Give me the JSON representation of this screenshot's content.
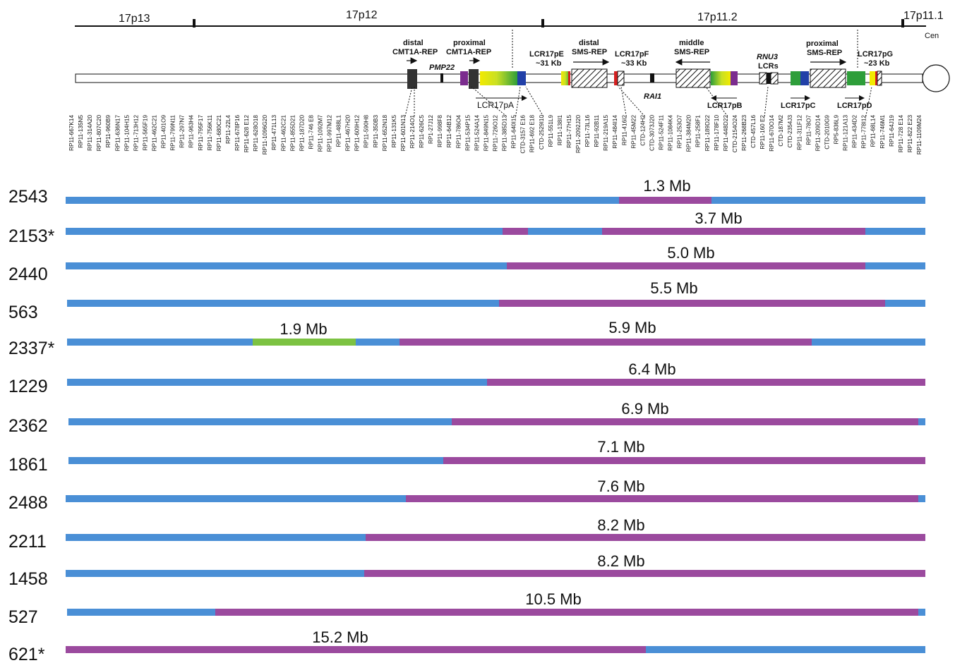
{
  "bands": [
    "17p13",
    "17p12",
    "17p11.2",
    "17p11.1"
  ],
  "centromere_label": "Cen",
  "regions": {
    "distal_cmt1a": [
      "distal",
      "CMT1A-REP"
    ],
    "proximal_cmt1a": [
      "proximal",
      "CMT1A-REP"
    ],
    "lcr17pe": [
      "LCR17pE",
      "~31 Kb"
    ],
    "distal_sms": [
      "distal",
      "SMS-REP"
    ],
    "lcr17pf": [
      "LCR17pF",
      "~33 Kb"
    ],
    "middle_sms": [
      "middle",
      "SMS-REP"
    ],
    "rnu3": [
      "RNU3",
      "LCRs"
    ],
    "proximal_sms": [
      "proximal",
      "SMS-REP"
    ],
    "lcr17pg": [
      "LCR17pG",
      "~23 Kb"
    ]
  },
  "genes": {
    "pmp22": "PMP22",
    "rai1": "RAI1"
  },
  "lcr_labels": {
    "pa": "LCR17pA",
    "pb": "LCR17pB",
    "pc": "LCR17pC",
    "pd": "LCR17pD"
  },
  "clones": [
    "RP11-667K14",
    "RP11-135N5",
    "RP11-314A20",
    "RP11-807C20",
    "RP11-960B9",
    "RP11-636N17",
    "RP11-104H15",
    "RP11-713H12",
    "RP11-565F19",
    "RP11-462C21",
    "RP11-401O9",
    "RP11-799N11",
    "RP11-297N7",
    "RP11-963H4",
    "RP11-795F17",
    "RP11-756K11",
    "RP11-680C21",
    "RP11-22L4",
    "RP11-678P16",
    "RP11-628 E12",
    "RP11-628O18",
    "RP11-1096G20",
    "RP11-471L13",
    "RP11-462C21",
    "RP11-855D21",
    "RP11-187D20",
    "RP11-746 E8",
    "RP11-1092M7",
    "RP11-997M12",
    "RP11-488L1",
    "RP11-467H20",
    "RP11-609H12",
    "RP11-590H8",
    "RP11-350B3",
    "RP11-652N18",
    "RP11-131K5",
    "RP11-601N13",
    "RP11-214O1",
    "RP11-626C5",
    "RP1-27J12",
    "RP11-998F8",
    "RP11-64B12",
    "RP11-786O4",
    "RP11-534P15",
    "RP11-524A14",
    "RP11-849N15",
    "RP11-726O12",
    "RP11-385D13",
    "RP11-640I15",
    "CTD-3157 E16",
    "RP11-692 E18",
    "CTD-2529I10",
    "RP11-551L9",
    "RP11-138I1",
    "RP11-77H15",
    "RP11-2092J20",
    "RP11-73L16",
    "RP11-92B11",
    "RP11-219A15",
    "RP11-484I14",
    "RP11-416I2",
    "RP11-45M22",
    "CTD-124H2",
    "CTD-3073J20",
    "RP11-524F11",
    "RP11-1084K4",
    "RP11-253O7",
    "RP11-384M20",
    "RP11-258F1",
    "RP11-189D22",
    "RP11-178F10",
    "RP11-448D22",
    "CTD-2154O24",
    "RP11-268B23",
    "CTD-457L16",
    "RP11-160 E2",
    "RP11-670O14",
    "CTD-187M2",
    "CTD-2354J3",
    "RP11-311F12",
    "RP11-78O7",
    "RP11-209D14",
    "CTD-2010G9",
    "RP5-836L9",
    "RP11-121A13",
    "RP11-434D2",
    "RP11-778I12",
    "RP11-68L14",
    "RP11-746M1",
    "RP11-64J19",
    "RP11-728 E14",
    "RP11-822 E23",
    "RP11-1109M24"
  ],
  "patients": [
    {
      "id": "2543",
      "size": "1.3 Mb"
    },
    {
      "id": "2153*",
      "size": "3.7 Mb"
    },
    {
      "id": "2440",
      "size": "5.0 Mb"
    },
    {
      "id": "563",
      "size": "5.5 Mb"
    },
    {
      "id": "2337*",
      "size": "5.9 Mb",
      "extra_size": "1.9 Mb"
    },
    {
      "id": "1229",
      "size": "6.4 Mb"
    },
    {
      "id": "2362",
      "size": "6.9 Mb"
    },
    {
      "id": "1861",
      "size": "7.1 Mb"
    },
    {
      "id": "2488",
      "size": "7.6 Mb"
    },
    {
      "id": "2211",
      "size": "8.2 Mb"
    },
    {
      "id": "1458",
      "size": "8.2 Mb"
    },
    {
      "id": "527",
      "size": "10.5 Mb"
    },
    {
      "id": "621*",
      "size": "15.2 Mb"
    }
  ],
  "colors": {
    "normal": "#4a8fd6",
    "deleted": "#9b4a9e",
    "second_deletion": "#7cc242",
    "lcr_green": "#2e9e3a",
    "lcr_yellow": "#f2ea00",
    "lcr_blue": "#2140a8",
    "lcr_purple": "#7b2c8e"
  }
}
